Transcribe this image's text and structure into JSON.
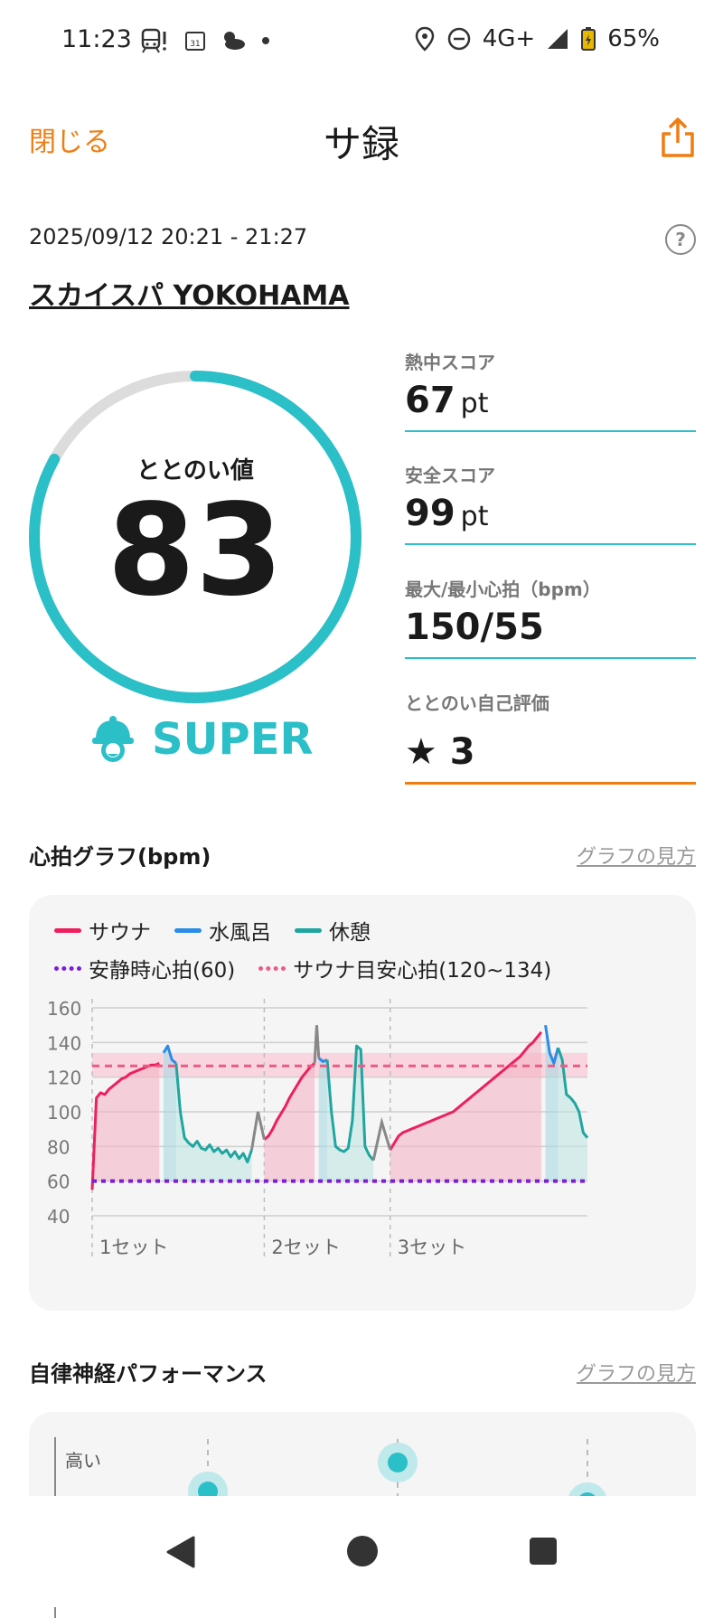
{
  "status_bar": {
    "time": "11:23",
    "network": "4G+",
    "battery": "65%"
  },
  "header": {
    "close_label": "閉じる",
    "title": "サ録",
    "share_icon": "share-icon"
  },
  "session": {
    "datetime": "2025/09/12 20:21 - 21:27",
    "facility": "スカイスパ YOKOHAMA"
  },
  "gauge": {
    "label": "ととのい値",
    "value": "83",
    "progress": 0.83,
    "grade": "SUPER",
    "color": "#2bbfc8"
  },
  "scores": [
    {
      "label": "熱中スコア",
      "value": "67",
      "unit": "pt"
    },
    {
      "label": "安全スコア",
      "value": "99",
      "unit": "pt"
    },
    {
      "label": "最大/最小心拍（bpm）",
      "value": "150/55",
      "unit": ""
    },
    {
      "label": "ととのい自己評価",
      "value": "★ 3",
      "unit": ""
    }
  ],
  "heart_section": {
    "title": "心拍グラフ(bpm)",
    "link": "グラフの見方"
  },
  "legend": {
    "sauna": "サウナ",
    "cold": "水風呂",
    "rest": "休憩",
    "resting_hr": "安静時心拍(60)",
    "target_hr": "サウナ目安心拍(120~134)"
  },
  "chart_data": {
    "type": "line",
    "ylim": [
      40,
      160
    ],
    "yticks": [
      160,
      140,
      120,
      100,
      80,
      60,
      40
    ],
    "set_labels": [
      "1セット",
      "2セット",
      "3セット"
    ],
    "resting_hr": 60,
    "target_band": [
      120,
      134
    ],
    "colors": {
      "sauna": "#ee1f5f",
      "cold": "#2a8ce6",
      "rest": "#1fa6a0",
      "gap": "#888888"
    },
    "series": [
      {
        "name": "サウナ",
        "segments": [
          {
            "start": 0,
            "end": 16,
            "points": [
              55,
              108,
              111,
              110,
              113,
              115,
              117,
              119,
              120,
              122,
              123,
              124,
              125,
              126,
              127,
              127,
              128
            ]
          },
          {
            "start": 41,
            "end": 53,
            "points": [
              84,
              86,
              90,
              95,
              99,
              103,
              108,
              112,
              116,
              120,
              123,
              126,
              128
            ]
          },
          {
            "start": 71,
            "end": 107,
            "points": [
              78,
              82,
              86,
              88,
              89,
              90,
              91,
              92,
              93,
              94,
              95,
              96,
              97,
              98,
              99,
              100,
              102,
              104,
              106,
              108,
              110,
              112,
              114,
              116,
              118,
              120,
              122,
              124,
              126,
              128,
              130,
              132,
              135,
              138,
              140,
              143,
              146
            ]
          }
        ]
      },
      {
        "name": "水風呂",
        "segments": [
          {
            "start": 17,
            "end": 20,
            "points": [
              134,
              138,
              130,
              128
            ]
          },
          {
            "start": 54,
            "end": 56,
            "points": [
              131,
              129,
              130
            ]
          },
          {
            "start": 108,
            "end": 111,
            "points": [
              150,
              134,
              128,
              137
            ]
          }
        ]
      },
      {
        "name": "休憩",
        "segments": [
          {
            "start": 20,
            "end": 38,
            "points": [
              128,
              100,
              85,
              82,
              80,
              83,
              79,
              78,
              81,
              77,
              79,
              76,
              78,
              74,
              77,
              73,
              76,
              71,
              78
            ]
          },
          {
            "start": 56,
            "end": 67,
            "points": [
              130,
              100,
              80,
              78,
              77,
              79,
              95,
              138,
              136,
              80,
              75,
              72
            ]
          },
          {
            "start": 111,
            "end": 118,
            "points": [
              137,
              130,
              110,
              108,
              105,
              100,
              88,
              85
            ]
          }
        ]
      }
    ],
    "x_max": 118
  },
  "ans_section": {
    "title": "自律神経パフォーマンス",
    "link": "グラフの見方",
    "y_label": "高い"
  }
}
